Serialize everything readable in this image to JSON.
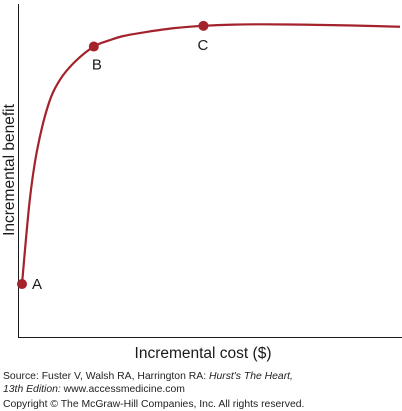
{
  "chart_data": {
    "type": "line",
    "xlabel": "Incremental cost ($)",
    "ylabel": "Incremental benefit",
    "xlim": [
      0,
      100
    ],
    "ylim": [
      0,
      100
    ],
    "grid": false,
    "series": [
      {
        "x": [
          0,
          2,
          4,
          7,
          10,
          14,
          19,
          23,
          27,
          33,
          40,
          48,
          56,
          64,
          74,
          84,
          94,
          100
        ],
        "y": [
          10,
          37,
          54,
          69,
          77,
          83,
          88,
          90,
          91.5,
          92.8,
          94,
          94.8,
          95.2,
          95.3,
          95.2,
          95,
          94.7,
          94.5
        ]
      }
    ],
    "points": [
      {
        "label": "A",
        "x": 0,
        "y": 10
      },
      {
        "label": "B",
        "x": 19,
        "y": 88
      },
      {
        "label": "C",
        "x": 48,
        "y": 94.8
      }
    ],
    "colors": {
      "curve": "#a3222b",
      "axis": "#1a1a1a"
    }
  },
  "source": {
    "line1_prefix": "Source: Fuster V, Walsh RA, Harrington RA: ",
    "line1_title": "Hurst's The Heart,",
    "line2_edition": "13th Edition:",
    "line2_url": " www.accessmedicine.com",
    "line3": "Copyright © The McGraw-Hill Companies, Inc. All rights reserved."
  }
}
